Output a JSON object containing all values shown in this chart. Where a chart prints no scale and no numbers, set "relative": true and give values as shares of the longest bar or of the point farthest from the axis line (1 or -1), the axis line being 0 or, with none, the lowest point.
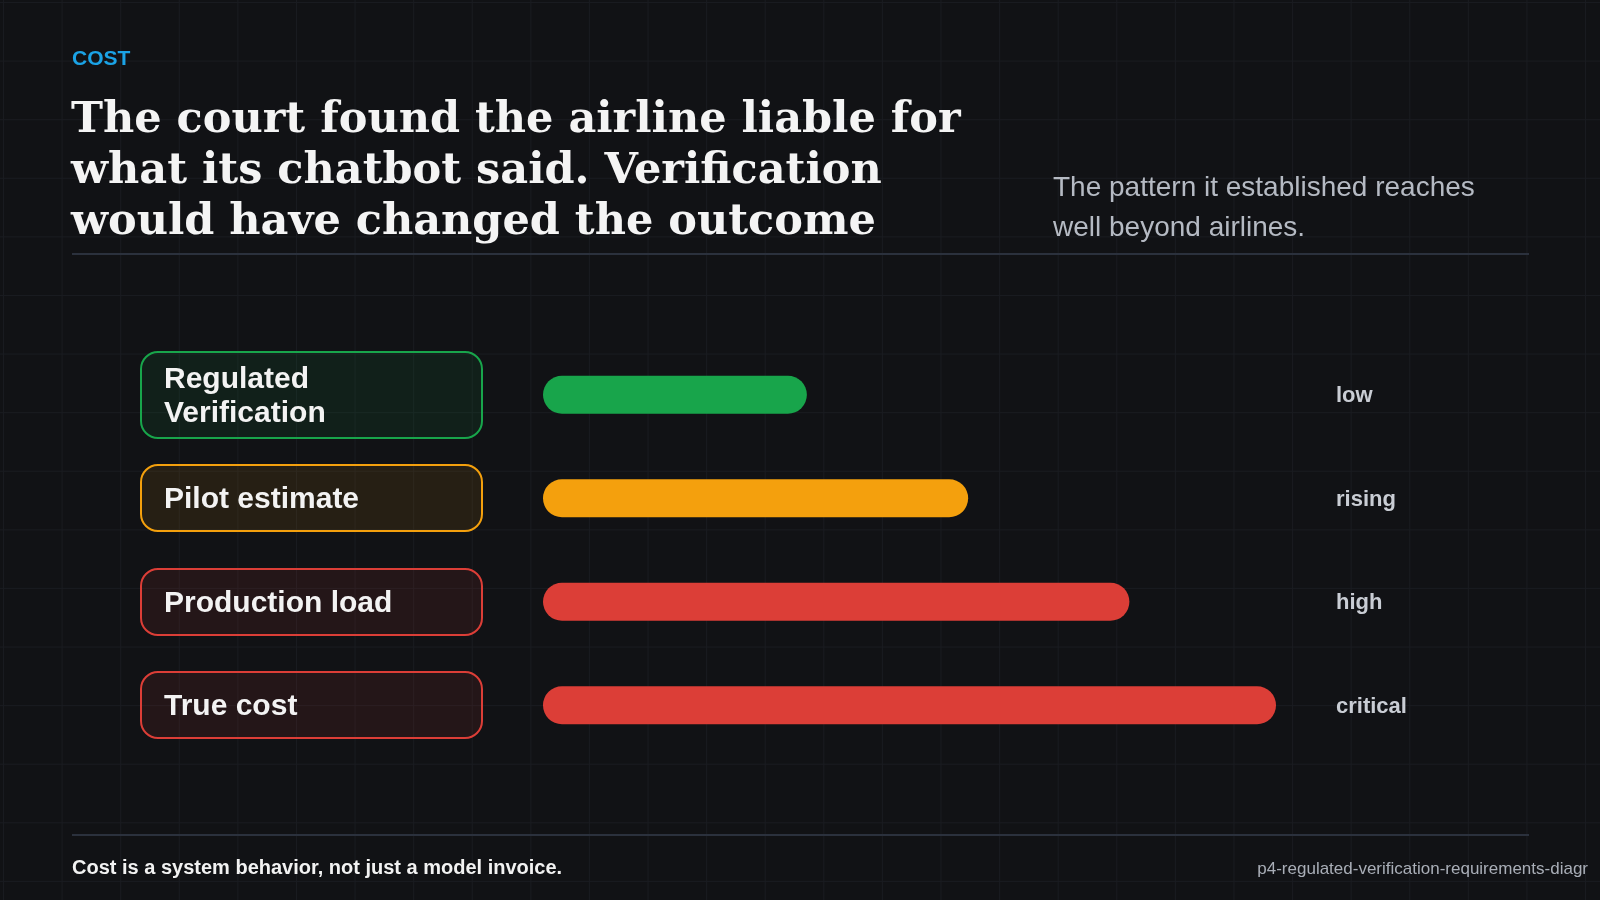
{
  "chart_data": {
    "type": "bar",
    "orientation": "horizontal",
    "relative": true,
    "title": "The court found the airline liable for what its chatbot said. Verification would have changed the outcome",
    "subtitle": "The pattern it established reaches well beyond airlines.",
    "categories": [
      "Regulated Verification",
      "Pilot estimate",
      "Production load",
      "True cost"
    ],
    "values": [
      0.36,
      0.58,
      0.8,
      1
    ],
    "colors": [
      "#18a54b",
      "#f4a00d",
      "#dc3e37",
      "#dc3e37"
    ],
    "annotations": [
      "COST",
      "low",
      "rising",
      "high",
      "critical",
      "Cost is a system behavior, not just a model invoice.",
      "p4-regulated-verification-requirements-diagr"
    ]
  }
}
